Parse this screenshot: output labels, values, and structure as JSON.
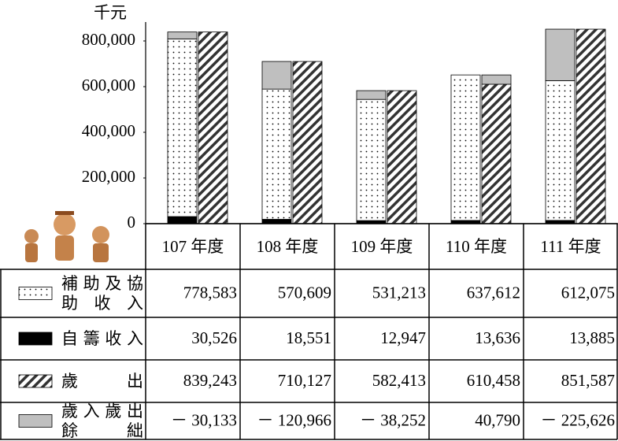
{
  "chart_data": {
    "type": "bar",
    "y_unit": "千元",
    "categories": [
      "107 年度",
      "108 年度",
      "109 年度",
      "110 年度",
      "111 年度"
    ],
    "series": [
      {
        "name": "補助及協助收入",
        "color": "#000000",
        "pattern": "dots",
        "values": [
          778583,
          570609,
          531213,
          637612,
          612075
        ],
        "value_labels": [
          "778,583",
          "570,609",
          "531,213",
          "637,612",
          "612,075"
        ]
      },
      {
        "name": "自籌收入",
        "color": "#000000",
        "pattern": "solid",
        "values": [
          30526,
          18551,
          12947,
          13636,
          13885
        ],
        "value_labels": [
          "30,526",
          "18,551",
          "12,947",
          "13,636",
          "13,885"
        ]
      },
      {
        "name": "歲出",
        "color": "#000000",
        "pattern": "hatch",
        "values": [
          839243,
          710127,
          582413,
          610458,
          851587
        ],
        "value_labels": [
          "839,243",
          "710,127",
          "582,413",
          "610,458",
          "851,587"
        ]
      },
      {
        "name": "歲入歲出餘絀",
        "color": "#bfbfbf",
        "pattern": "solid",
        "values": [
          -30133,
          -120966,
          -38252,
          40790,
          -225626
        ],
        "value_labels": [
          "－ 30,133",
          "－ 120,966",
          "－ 38,252",
          "40,790",
          "－ 225,626"
        ]
      }
    ],
    "ylim": [
      0,
      900000
    ],
    "yticks": [
      0,
      {
        "value": 200000,
        "label": "200,000"
      },
      {
        "value": 400000,
        "label": "400,000"
      },
      {
        "value": 600000,
        "label": "600,000"
      },
      {
        "value": 800000,
        "label": "800,000"
      }
    ]
  }
}
